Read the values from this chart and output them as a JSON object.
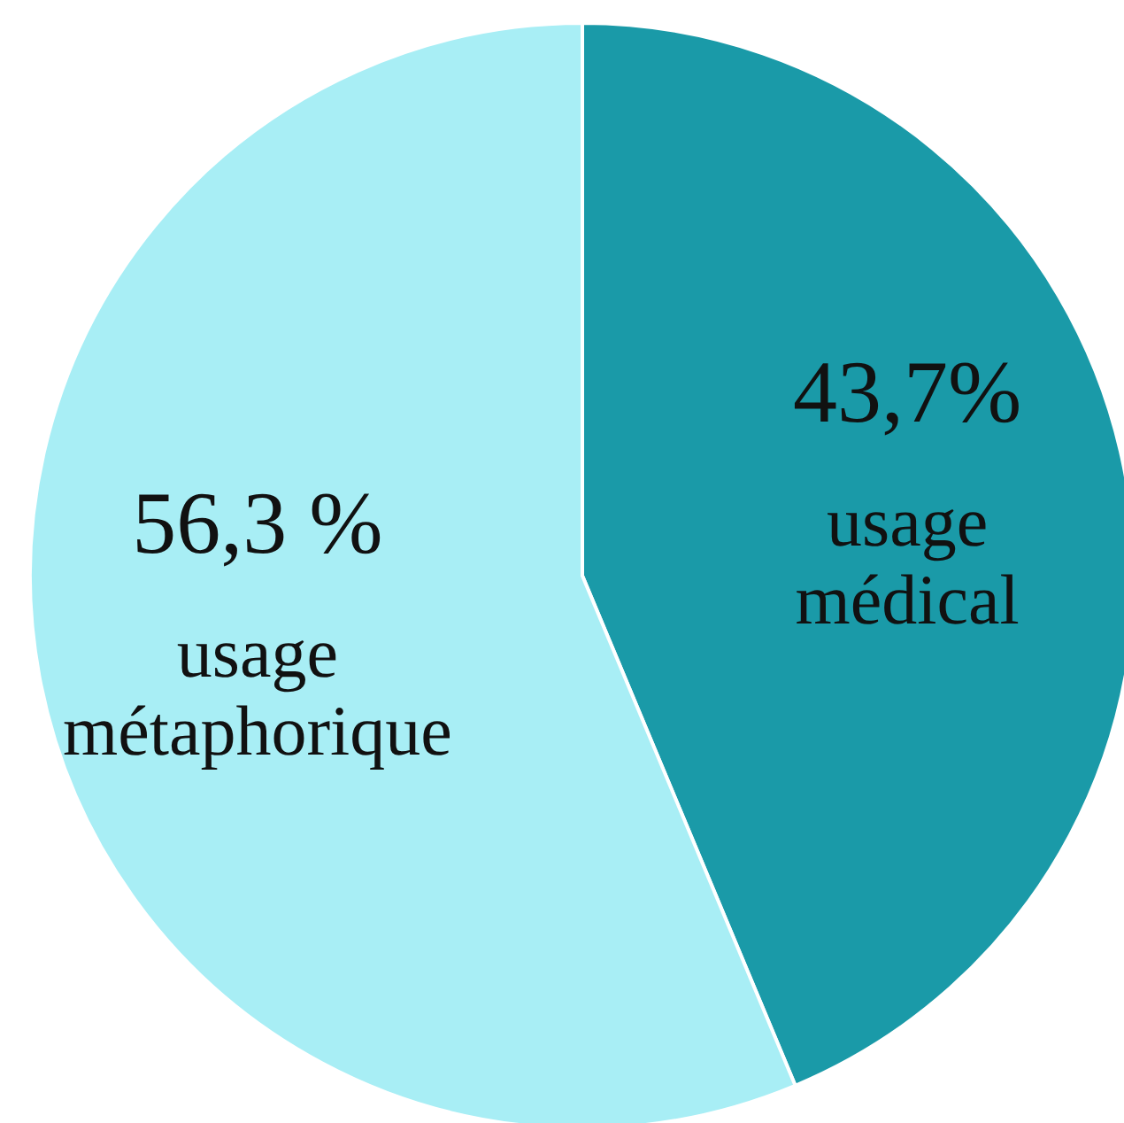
{
  "chart_data": {
    "type": "pie",
    "categories": [
      "usage médical",
      "usage métaphorique"
    ],
    "values": [
      43.7,
      56.3
    ],
    "colors": [
      "#1a9aa8",
      "#a8eef5"
    ],
    "value_labels": [
      "43,7%",
      "56,3 %"
    ],
    "legend": false
  }
}
